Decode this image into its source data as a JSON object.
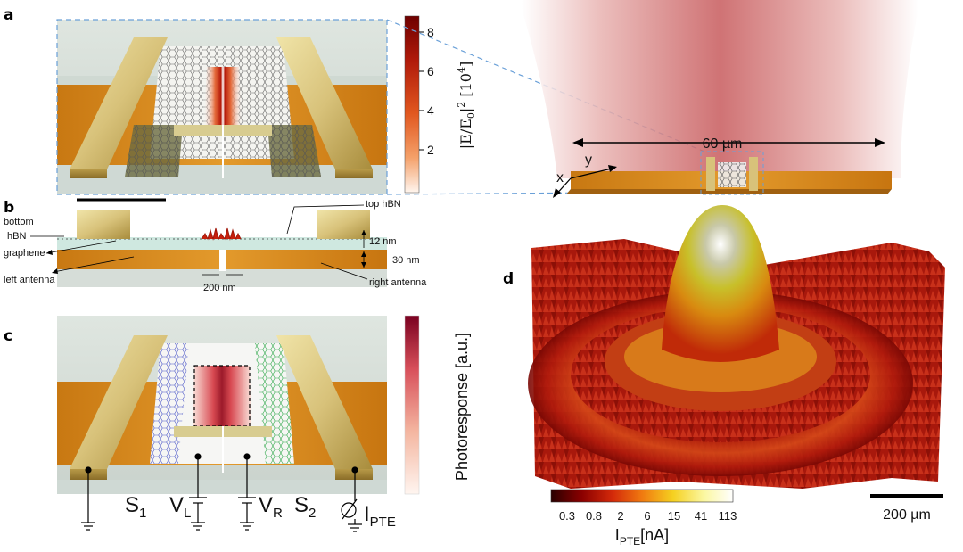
{
  "panels": {
    "a": {
      "label": "a",
      "colorbar": {
        "title": "|E/E",
        "title_sub": "0",
        "title_rest": "|",
        "title_sup": "2",
        "title_unit": " [10",
        "title_unit_sup": "4",
        "title_end": "]",
        "ticks": [
          "8",
          "6",
          "4",
          "2"
        ],
        "colors": [
          "#fff5ee",
          "#f4a069",
          "#e1571f",
          "#b01a0a",
          "#6e0000"
        ]
      },
      "beam_size": "60 µm",
      "axis_x": "x",
      "axis_y": "y"
    },
    "b": {
      "label": "b",
      "labels": {
        "bottom": "bottom",
        "hbn": "hBN",
        "graphene": "graphene",
        "left_antenna": "left antenna",
        "top_hbn": "top hBN",
        "thickness1": "12 nm",
        "thickness2": "30 nm",
        "gap": "200 nm",
        "right_antenna": "right antenna"
      }
    },
    "c": {
      "label": "c",
      "colorbar": {
        "title": "Photoresponse [a.u.]",
        "colors": [
          "#fff5f0",
          "#f4b6a0",
          "#d8505a",
          "#7a0020"
        ]
      },
      "circuit": {
        "s1": "S",
        "s1_sub": "1",
        "vl": "V",
        "vl_sub": "L",
        "vr": "V",
        "vr_sub": "R",
        "s2": "S",
        "s2_sub": "2",
        "ipte": "I",
        "ipte_sub": "PTE"
      },
      "colors": {
        "s1": "#1f2fb8",
        "s2": "#2eb82e"
      }
    },
    "d": {
      "label": "d",
      "colorbar": {
        "ticks": [
          "0.3",
          "0.8",
          "2",
          "6",
          "15",
          "41",
          "113"
        ],
        "title": "I",
        "title_sub": "PTE",
        "title_unit": "[nA]",
        "colors": [
          "#2a0000",
          "#8b0000",
          "#d42a0a",
          "#f07a10",
          "#f5d020",
          "#fbf7a0",
          "#ffffff"
        ]
      },
      "scalebar": "200 µm"
    }
  }
}
